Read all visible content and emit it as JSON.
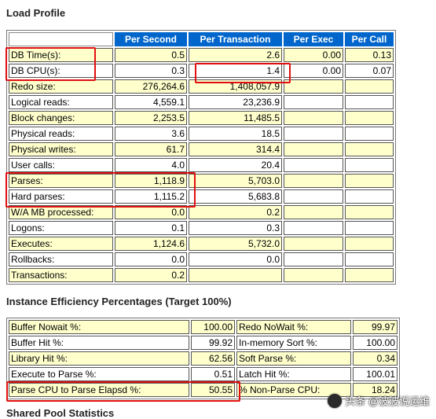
{
  "load_profile": {
    "title": "Load Profile",
    "headers": [
      "Per Second",
      "Per Transaction",
      "Per Exec",
      "Per Call"
    ],
    "rows": [
      {
        "label": "DB Time(s):",
        "per_second": "0.5",
        "per_transaction": "2.6",
        "per_exec": "0.00",
        "per_call": "0.13"
      },
      {
        "label": "DB CPU(s):",
        "per_second": "0.3",
        "per_transaction": "1.4",
        "per_exec": "0.00",
        "per_call": "0.07"
      },
      {
        "label": "Redo size:",
        "per_second": "276,264.6",
        "per_transaction": "1,408,057.9",
        "per_exec": "",
        "per_call": ""
      },
      {
        "label": "Logical reads:",
        "per_second": "4,559.1",
        "per_transaction": "23,236.9",
        "per_exec": "",
        "per_call": ""
      },
      {
        "label": "Block changes:",
        "per_second": "2,253.5",
        "per_transaction": "11,485.5",
        "per_exec": "",
        "per_call": ""
      },
      {
        "label": "Physical reads:",
        "per_second": "3.6",
        "per_transaction": "18.5",
        "per_exec": "",
        "per_call": ""
      },
      {
        "label": "Physical writes:",
        "per_second": "61.7",
        "per_transaction": "314.4",
        "per_exec": "",
        "per_call": ""
      },
      {
        "label": "User calls:",
        "per_second": "4.0",
        "per_transaction": "20.4",
        "per_exec": "",
        "per_call": ""
      },
      {
        "label": "Parses:",
        "per_second": "1,118.9",
        "per_transaction": "5,703.0",
        "per_exec": "",
        "per_call": ""
      },
      {
        "label": "Hard parses:",
        "per_second": "1,115.2",
        "per_transaction": "5,683.8",
        "per_exec": "",
        "per_call": ""
      },
      {
        "label": "W/A MB processed:",
        "per_second": "0.0",
        "per_transaction": "0.2",
        "per_exec": "",
        "per_call": ""
      },
      {
        "label": "Logons:",
        "per_second": "0.1",
        "per_transaction": "0.3",
        "per_exec": "",
        "per_call": ""
      },
      {
        "label": "Executes:",
        "per_second": "1,124.6",
        "per_transaction": "5,732.0",
        "per_exec": "",
        "per_call": ""
      },
      {
        "label": "Rollbacks:",
        "per_second": "0.0",
        "per_transaction": "0.0",
        "per_exec": "",
        "per_call": ""
      },
      {
        "label": "Transactions:",
        "per_second": "0.2",
        "per_transaction": "",
        "per_exec": "",
        "per_call": ""
      }
    ]
  },
  "instance_efficiency": {
    "title": "Instance Efficiency Percentages (Target 100%)",
    "rows": [
      {
        "label1": "Buffer Nowait %:",
        "value1": "100.00",
        "label2": "Redo NoWait %:",
        "value2": "99.97"
      },
      {
        "label1": "Buffer Hit %:",
        "value1": "99.92",
        "label2": "In-memory Sort %:",
        "value2": "100.00"
      },
      {
        "label1": "Library Hit %:",
        "value1": "62.56",
        "label2": "Soft Parse %:",
        "value2": "0.34"
      },
      {
        "label1": "Execute to Parse %:",
        "value1": "0.51",
        "label2": "Latch Hit %:",
        "value2": "100.01"
      },
      {
        "label1": "Parse CPU to Parse Elapsd %:",
        "value1": "50.55",
        "label2": "% Non-Parse CPU:",
        "value2": "18.24"
      }
    ]
  },
  "next_section": {
    "title": "Shared Pool Statistics"
  },
  "watermark": {
    "text": "头条 @波波说运维"
  },
  "colors": {
    "header_bg": "#0066cc",
    "odd_row_bg": "#ffffcc",
    "highlight": "#e01010"
  }
}
